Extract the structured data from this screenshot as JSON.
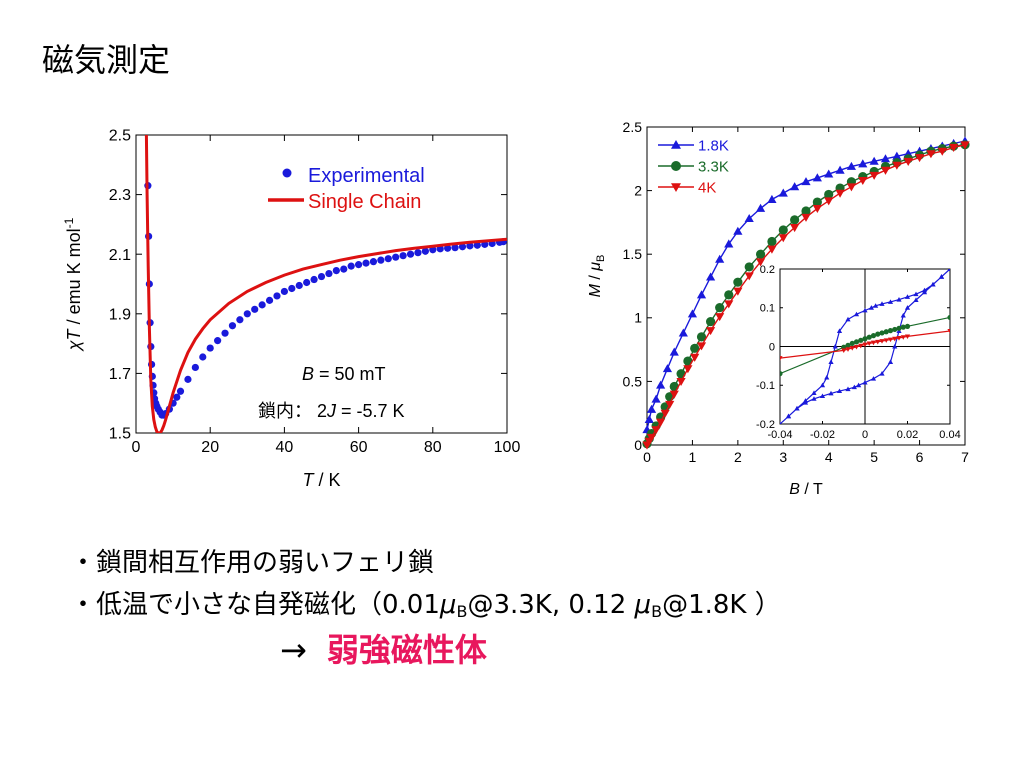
{
  "title": "磁気測定",
  "colors": {
    "blue": "#1a1adb",
    "red": "#dd1111",
    "green": "#1a6b2a",
    "accent": "#e8175d"
  },
  "bullets": {
    "line1": "・鎖間相互作用の弱いフェリ鎖",
    "line2_prefix": "・低温で小さな自発磁化（0.01",
    "mu": "μ",
    "B": "B",
    "line2_mid": "@3.3K, 0.12 ",
    "line2_end": "@1.8K ）",
    "arrow": "→",
    "conclusion": "弱強磁性体"
  },
  "chart_data": [
    {
      "id": "chiT",
      "type": "scatter",
      "ylabel_parts": [
        "χ",
        "T",
        " / emu K mol",
        "-1"
      ],
      "xlabel_parts": [
        "T",
        " / K"
      ],
      "xlim": [
        0,
        100
      ],
      "ylim": [
        1.5,
        2.5
      ],
      "xticks": [
        "0",
        "20",
        "40",
        "60",
        "80",
        "100"
      ],
      "yticks": [
        "1.5",
        "1.7",
        "1.9",
        "2.1",
        "2.3",
        "2.5"
      ],
      "legend": [
        "Experimental",
        "Single Chain"
      ],
      "annotations": {
        "field_label": "B",
        "field_value": " = 50 mT",
        "coupling_prefix": "鎖内：  2",
        "coupling_label": "J",
        "coupling_value": " = -5.7 K"
      },
      "series": [
        {
          "name": "Experimental",
          "x": [
            3.2,
            3.4,
            3.6,
            3.8,
            4.0,
            4.2,
            4.4,
            4.6,
            4.8,
            5.0,
            5.3,
            5.6,
            6,
            6.5,
            7,
            7.5,
            8,
            9,
            10,
            11,
            12,
            14,
            16,
            18,
            20,
            22,
            24,
            26,
            28,
            30,
            32,
            34,
            36,
            38,
            40,
            42,
            44,
            46,
            48,
            50,
            52,
            54,
            56,
            58,
            60,
            62,
            64,
            66,
            68,
            70,
            72,
            74,
            76,
            78,
            80,
            82,
            84,
            86,
            88,
            90,
            92,
            94,
            96,
            98,
            99
          ],
          "y": [
            2.33,
            2.16,
            2.0,
            1.87,
            1.79,
            1.73,
            1.69,
            1.66,
            1.635,
            1.615,
            1.6,
            1.59,
            1.58,
            1.57,
            1.56,
            1.56,
            1.565,
            1.58,
            1.6,
            1.62,
            1.64,
            1.68,
            1.72,
            1.755,
            1.785,
            1.81,
            1.835,
            1.86,
            1.88,
            1.9,
            1.915,
            1.93,
            1.945,
            1.96,
            1.975,
            1.985,
            1.995,
            2.005,
            2.015,
            2.025,
            2.035,
            2.045,
            2.05,
            2.06,
            2.065,
            2.07,
            2.075,
            2.08,
            2.085,
            2.09,
            2.095,
            2.1,
            2.105,
            2.11,
            2.115,
            2.118,
            2.12,
            2.122,
            2.125,
            2.128,
            2.13,
            2.133,
            2.136,
            2.14,
            2.142
          ]
        },
        {
          "name": "Single Chain",
          "x": [
            2.8,
            3.0,
            3.3,
            3.6,
            4.0,
            4.4,
            4.8,
            5.2,
            5.6,
            6,
            6.5,
            7,
            7.5,
            8,
            9,
            10,
            12,
            14,
            16,
            18,
            20,
            25,
            30,
            35,
            40,
            45,
            50,
            55,
            60,
            65,
            70,
            75,
            80,
            85,
            90,
            95,
            100
          ],
          "y": [
            2.5,
            2.3,
            2.06,
            1.85,
            1.68,
            1.59,
            1.545,
            1.52,
            1.505,
            1.5,
            1.5,
            1.51,
            1.525,
            1.545,
            1.59,
            1.635,
            1.71,
            1.77,
            1.815,
            1.85,
            1.88,
            1.935,
            1.975,
            2.005,
            2.03,
            2.05,
            2.065,
            2.08,
            2.092,
            2.102,
            2.112,
            2.12,
            2.127,
            2.134,
            2.14,
            2.145,
            2.15
          ]
        }
      ]
    },
    {
      "id": "MB",
      "type": "line",
      "ylabel_parts": [
        "M",
        " / ",
        "μ",
        "B"
      ],
      "xlabel_parts": [
        "B",
        " / T"
      ],
      "xlim": [
        0,
        7
      ],
      "ylim": [
        0,
        2.5
      ],
      "xticks": [
        "0",
        "1",
        "2",
        "3",
        "4",
        "5",
        "6",
        "7"
      ],
      "yticks": [
        "0",
        "0.5",
        "1",
        "1.5",
        "2",
        "2.5"
      ],
      "legend": [
        "1.8K",
        "3.3K",
        "4K"
      ],
      "series": [
        {
          "name": "1.8K",
          "marker": "triangle-up",
          "x": [
            0.0,
            0.05,
            0.1,
            0.2,
            0.3,
            0.45,
            0.6,
            0.8,
            1.0,
            1.2,
            1.4,
            1.6,
            1.8,
            2.0,
            2.25,
            2.5,
            2.75,
            3.0,
            3.25,
            3.5,
            3.75,
            4.0,
            4.25,
            4.5,
            4.75,
            5.0,
            5.25,
            5.5,
            5.75,
            6.0,
            6.25,
            6.5,
            6.75,
            7.0
          ],
          "y": [
            0.12,
            0.2,
            0.28,
            0.36,
            0.47,
            0.6,
            0.73,
            0.88,
            1.03,
            1.18,
            1.32,
            1.46,
            1.58,
            1.68,
            1.78,
            1.86,
            1.93,
            1.98,
            2.03,
            2.07,
            2.1,
            2.13,
            2.16,
            2.19,
            2.21,
            2.23,
            2.25,
            2.27,
            2.29,
            2.31,
            2.33,
            2.35,
            2.37,
            2.39
          ]
        },
        {
          "name": "3.3K",
          "marker": "circle",
          "x": [
            0.0,
            0.05,
            0.1,
            0.2,
            0.3,
            0.4,
            0.5,
            0.6,
            0.75,
            0.9,
            1.05,
            1.2,
            1.4,
            1.6,
            1.8,
            2.0,
            2.25,
            2.5,
            2.75,
            3.0,
            3.25,
            3.5,
            3.75,
            4.0,
            4.25,
            4.5,
            4.75,
            5.0,
            5.25,
            5.5,
            5.75,
            6.0,
            6.25,
            6.5,
            6.75,
            7.0
          ],
          "y": [
            0.01,
            0.05,
            0.09,
            0.15,
            0.22,
            0.3,
            0.38,
            0.46,
            0.56,
            0.66,
            0.76,
            0.85,
            0.97,
            1.08,
            1.18,
            1.28,
            1.4,
            1.5,
            1.6,
            1.69,
            1.77,
            1.84,
            1.91,
            1.97,
            2.02,
            2.07,
            2.11,
            2.15,
            2.19,
            2.22,
            2.25,
            2.28,
            2.31,
            2.33,
            2.35,
            2.36
          ]
        },
        {
          "name": "4K",
          "marker": "triangle-down",
          "x": [
            0.0,
            0.05,
            0.1,
            0.2,
            0.3,
            0.4,
            0.5,
            0.6,
            0.75,
            0.9,
            1.05,
            1.2,
            1.4,
            1.6,
            1.8,
            2.0,
            2.25,
            2.5,
            2.75,
            3.0,
            3.25,
            3.5,
            3.75,
            4.0,
            4.25,
            4.5,
            4.75,
            5.0,
            5.25,
            5.5,
            5.75,
            6.0,
            6.25,
            6.5,
            6.75,
            7.0
          ],
          "y": [
            0.0,
            0.03,
            0.06,
            0.12,
            0.18,
            0.25,
            0.32,
            0.4,
            0.5,
            0.6,
            0.69,
            0.78,
            0.9,
            1.01,
            1.11,
            1.21,
            1.33,
            1.44,
            1.54,
            1.63,
            1.71,
            1.79,
            1.86,
            1.92,
            1.98,
            2.03,
            2.08,
            2.12,
            2.16,
            2.2,
            2.23,
            2.26,
            2.29,
            2.31,
            2.34,
            2.36
          ]
        }
      ],
      "inset": {
        "type": "line",
        "xlim": [
          -0.04,
          0.04
        ],
        "ylim": [
          -0.2,
          0.2
        ],
        "xticks": [
          "-0.04",
          "-0.02",
          "0",
          "0.02",
          "0.04"
        ],
        "yticks": [
          "-0.2",
          "-0.1",
          "0",
          "0.1",
          "0.2"
        ],
        "series": [
          {
            "name": "1.8K",
            "marker": "triangle-up",
            "x": [
              0.04,
              0.036,
              0.032,
              0.028,
              0.024,
              0.02,
              0.016,
              0.012,
              0.008,
              0.005,
              0.003,
              0.0,
              -0.004,
              -0.008,
              -0.012,
              -0.014,
              -0.016,
              -0.018,
              -0.02,
              -0.024,
              -0.028,
              -0.032,
              -0.036,
              -0.04,
              -0.036,
              -0.032,
              -0.028,
              -0.024,
              -0.02,
              -0.016,
              -0.012,
              -0.008,
              -0.005,
              -0.003,
              0.0,
              0.004,
              0.008,
              0.012,
              0.014,
              0.016,
              0.018,
              0.02,
              0.024,
              0.028,
              0.032,
              0.036,
              0.04
            ],
            "y": [
              0.2,
              0.18,
              0.16,
              0.145,
              0.135,
              0.128,
              0.121,
              0.115,
              0.11,
              0.105,
              0.1,
              0.093,
              0.083,
              0.07,
              0.04,
              0.0,
              -0.04,
              -0.08,
              -0.1,
              -0.12,
              -0.14,
              -0.16,
              -0.18,
              -0.2,
              -0.18,
              -0.16,
              -0.145,
              -0.135,
              -0.128,
              -0.121,
              -0.115,
              -0.11,
              -0.105,
              -0.1,
              -0.093,
              -0.083,
              -0.07,
              -0.04,
              0.0,
              0.04,
              0.08,
              0.1,
              0.12,
              0.14,
              0.16,
              0.18,
              0.2
            ]
          },
          {
            "name": "3.3K",
            "marker": "circle",
            "x": [
              -0.04,
              -0.01,
              -0.008,
              -0.006,
              -0.004,
              -0.002,
              0.0,
              0.002,
              0.004,
              0.006,
              0.008,
              0.01,
              0.012,
              0.014,
              0.016,
              0.018,
              0.02,
              0.04
            ],
            "y": [
              -0.07,
              -0.002,
              0.003,
              0.008,
              0.012,
              0.016,
              0.02,
              0.024,
              0.028,
              0.032,
              0.035,
              0.038,
              0.041,
              0.044,
              0.047,
              0.05,
              0.052,
              0.075
            ]
          },
          {
            "name": "4K",
            "marker": "triangle-down",
            "x": [
              -0.04,
              -0.01,
              -0.008,
              -0.006,
              -0.004,
              -0.002,
              0.0,
              0.002,
              0.004,
              0.006,
              0.008,
              0.01,
              0.012,
              0.014,
              0.016,
              0.018,
              0.02,
              0.04
            ],
            "y": [
              -0.03,
              -0.01,
              -0.007,
              -0.004,
              -0.001,
              0.002,
              0.005,
              0.008,
              0.01,
              0.012,
              0.014,
              0.016,
              0.018,
              0.02,
              0.022,
              0.024,
              0.026,
              0.04
            ]
          }
        ]
      }
    }
  ]
}
